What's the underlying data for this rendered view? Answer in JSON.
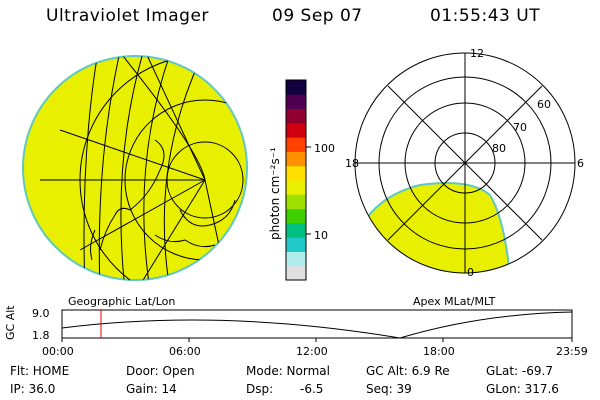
{
  "header": {
    "title": "Ultraviolet Imager",
    "date": "09 Sep 07",
    "time": "01:55:43 UT"
  },
  "colorbar": {
    "label": "photon cm⁻²s⁻¹",
    "tick_100": "100",
    "tick_10": "10",
    "colors": [
      "#e0e0e0",
      "#b0ecec",
      "#20c8c8",
      "#00c080",
      "#40d000",
      "#a0e000",
      "#e8f000",
      "#ffe000",
      "#ff9000",
      "#ff4000",
      "#d00010",
      "#900030",
      "#500050",
      "#100040"
    ]
  },
  "left_panel": {
    "caption": "Geographic Lat/Lon"
  },
  "right_panel": {
    "caption": "Apex MLat/MLT",
    "mlt_top": "12",
    "mlt_left": "18",
    "mlt_right": "6",
    "mlt_bottom": "0",
    "lat_60": "60",
    "lat_70": "70",
    "lat_80": "80"
  },
  "altitude": {
    "axis_label": "GC Alt",
    "y_max": "9.0",
    "y_min": "1.8",
    "ticks": [
      "00:00",
      "06:00",
      "12:00",
      "18:00",
      "23:59"
    ]
  },
  "status": {
    "flt": "Flt: HOME",
    "door": "Door: Open",
    "mode": "Mode: Normal",
    "gc_alt": "GC Alt: 6.9 Re",
    "glat": "GLat: -69.7",
    "ip": "IP: 36.0",
    "gain": "Gain: 14",
    "dsp_label": "Dsp:",
    "dsp_value": "-6.5",
    "seq": "Seq: 39",
    "glon": "GLon: 317.6"
  }
}
